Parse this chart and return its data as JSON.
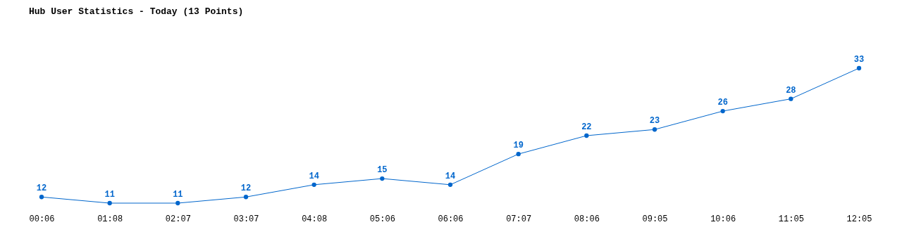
{
  "chart_data": {
    "type": "line",
    "title": "Hub User Statistics - Today (13 Points)",
    "categories": [
      "00:06",
      "01:08",
      "02:07",
      "03:07",
      "04:08",
      "05:06",
      "06:06",
      "07:07",
      "08:06",
      "09:05",
      "10:06",
      "11:05",
      "12:05"
    ],
    "series": [
      {
        "color": "#0066cc",
        "values": [
          12,
          11,
          11,
          12,
          14,
          15,
          14,
          19,
          22,
          23,
          26,
          28,
          33
        ]
      }
    ],
    "data_labels": true,
    "marker": "circle",
    "line_style": "solid",
    "grid": false,
    "tick_labels": "x"
  }
}
